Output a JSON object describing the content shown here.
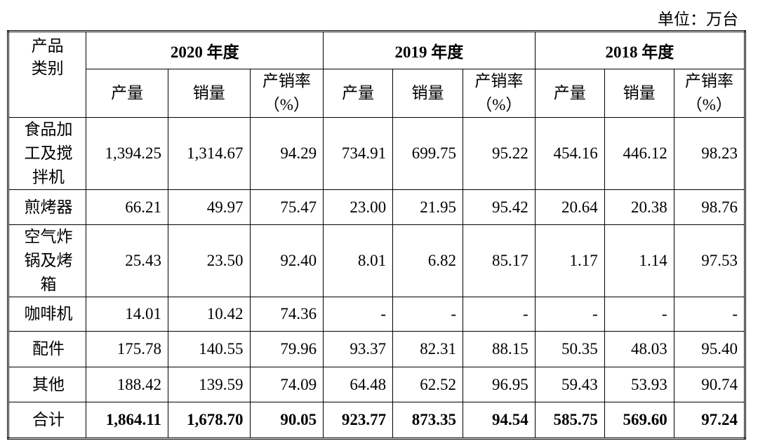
{
  "unit": "单位：万台",
  "table": {
    "corner": "产品类别",
    "years": [
      "2020 年度",
      "2019 年度",
      "2018 年度"
    ],
    "subheaders": [
      "产量",
      "销量",
      "产销率（%）",
      "产量",
      "销量",
      "产销率（%）",
      "产量",
      "销量",
      "产销率（%）"
    ],
    "rows": [
      [
        "食品加工及搅拌机",
        "1,394.25",
        "1,314.67",
        "94.29",
        "734.91",
        "699.75",
        "95.22",
        "454.16",
        "446.12",
        "98.23"
      ],
      [
        "煎烤器",
        "66.21",
        "49.97",
        "75.47",
        "23.00",
        "21.95",
        "95.42",
        "20.64",
        "20.38",
        "98.76"
      ],
      [
        "空气炸锅及烤箱",
        "25.43",
        "23.50",
        "92.40",
        "8.01",
        "6.82",
        "85.17",
        "1.17",
        "1.14",
        "97.53"
      ],
      [
        "咖啡机",
        "14.01",
        "10.42",
        "74.36",
        "-",
        "-",
        "-",
        "-",
        "-",
        "-"
      ],
      [
        "配件",
        "175.78",
        "140.55",
        "79.96",
        "93.37",
        "82.31",
        "88.15",
        "50.35",
        "48.03",
        "95.40"
      ],
      [
        "其他",
        "188.42",
        "139.59",
        "74.09",
        "64.48",
        "62.52",
        "96.95",
        "59.43",
        "53.93",
        "90.74"
      ],
      [
        "合计",
        "1,864.11",
        "1,678.70",
        "90.05",
        "923.77",
        "873.35",
        "94.54",
        "585.75",
        "569.60",
        "97.24"
      ]
    ]
  }
}
